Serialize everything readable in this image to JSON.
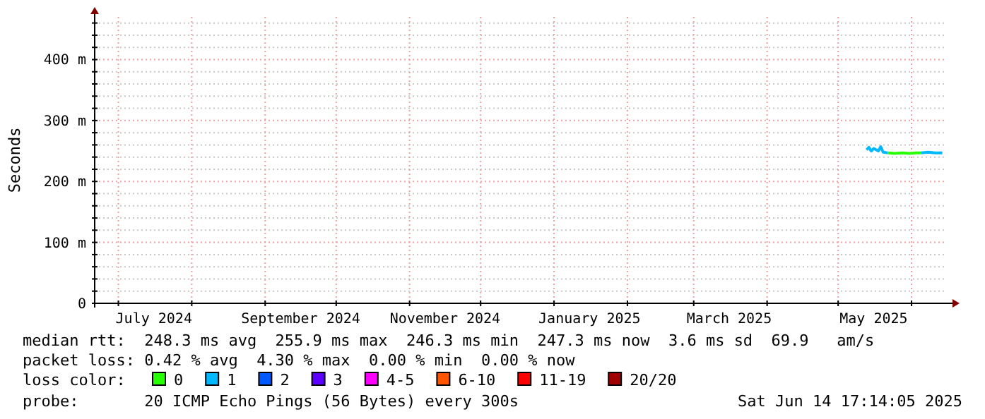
{
  "chart_data": {
    "type": "line",
    "ylabel": "Seconds",
    "legend_title": "loss color:",
    "legend": "bottom",
    "grid": true,
    "marker": "none",
    "line_style": "solid",
    "xlim": [
      "2024-06-21",
      "2025-06-14T17:14"
    ],
    "ylim": [
      0,
      470
    ],
    "yticks": [
      0,
      {
        "value": 20,
        "label": null
      },
      {
        "value": 40,
        "label": null
      },
      {
        "value": 60,
        "label": null
      },
      {
        "value": 80,
        "label": null
      },
      {
        "value": 100,
        "label": "100 m"
      },
      {
        "value": 120,
        "label": null
      },
      {
        "value": 140,
        "label": null
      },
      {
        "value": 160,
        "label": null
      },
      {
        "value": 180,
        "label": null
      },
      {
        "value": 200,
        "label": "200 m"
      },
      {
        "value": 220,
        "label": null
      },
      {
        "value": 240,
        "label": null
      },
      {
        "value": 260,
        "label": null
      },
      {
        "value": 280,
        "label": null
      },
      {
        "value": 300,
        "label": "300 m"
      },
      {
        "value": 320,
        "label": null
      },
      {
        "value": 340,
        "label": null
      },
      {
        "value": 360,
        "label": null
      },
      {
        "value": 380,
        "label": null
      },
      {
        "value": 400,
        "label": "400 m"
      },
      {
        "value": 420,
        "label": null
      },
      {
        "value": 440,
        "label": null
      },
      {
        "value": 460,
        "label": null
      }
    ],
    "xticks": [
      {
        "value": "2024-07-01",
        "label": null
      },
      {
        "value": "2024-07-16",
        "label": "July 2024"
      },
      {
        "value": "2024-08-01",
        "label": null
      },
      {
        "value": "2024-09-01",
        "label": null
      },
      {
        "value": "2024-09-16",
        "label": "September 2024"
      },
      {
        "value": "2024-10-01",
        "label": null
      },
      {
        "value": "2024-11-01",
        "label": null
      },
      {
        "value": "2024-11-16",
        "label": "November 2024"
      },
      {
        "value": "2024-12-01",
        "label": null
      },
      {
        "value": "2025-01-01",
        "label": null
      },
      {
        "value": "2025-01-16",
        "label": "January 2025"
      },
      {
        "value": "2025-02-01",
        "label": null
      },
      {
        "value": "2025-03-01",
        "label": null
      },
      {
        "value": "2025-03-16",
        "label": "March 2025"
      },
      {
        "value": "2025-04-01",
        "label": null
      },
      {
        "value": "2025-05-01",
        "label": null
      },
      {
        "value": "2025-05-16",
        "label": "May 2025"
      },
      {
        "value": "2025-06-01",
        "label": null
      }
    ],
    "series": [
      {
        "name": "0",
        "color": "#26ff00",
        "x": [
          "2025-05-22",
          "2025-05-25",
          "2025-05-28",
          "2025-05-31",
          "2025-06-03",
          "2025-06-05"
        ],
        "values": [
          247,
          246,
          247,
          246,
          247,
          247
        ]
      },
      {
        "name": "1",
        "color": "#00b8ff",
        "x": [
          "2025-05-13",
          "2025-05-14",
          "2025-05-15",
          "2025-05-16",
          "2025-05-17",
          "2025-05-18",
          "2025-05-19",
          "2025-05-20",
          "2025-05-22",
          null,
          "2025-06-05",
          "2025-06-08",
          "2025-06-11",
          "2025-06-14"
        ],
        "values": [
          252,
          256,
          250,
          254,
          252,
          250,
          257,
          248,
          247,
          null,
          247,
          248,
          247,
          247
        ]
      },
      {
        "name": "2",
        "color": "#0059ff"
      },
      {
        "name": "3",
        "color": "#5e00ff"
      },
      {
        "name": "4-5",
        "color": "#ff00ff"
      },
      {
        "name": "6-10",
        "color": "#ff5500"
      },
      {
        "name": "11-19",
        "color": "#ff0000"
      },
      {
        "name": "20/20",
        "color": "#a10000"
      }
    ],
    "annotations": [
      "median rtt:  248.3 ms avg  255.9 ms max  246.3 ms min  247.3 ms now  3.6 ms sd  69.9   am/s",
      "packet loss: 0.42 % avg  4.30 % max  0.00 % min  0.00 % now",
      "probe:       20 ICMP Echo Pings (56 Bytes) every 300s",
      "Sat Jun 14 17:14:05 2025"
    ]
  }
}
